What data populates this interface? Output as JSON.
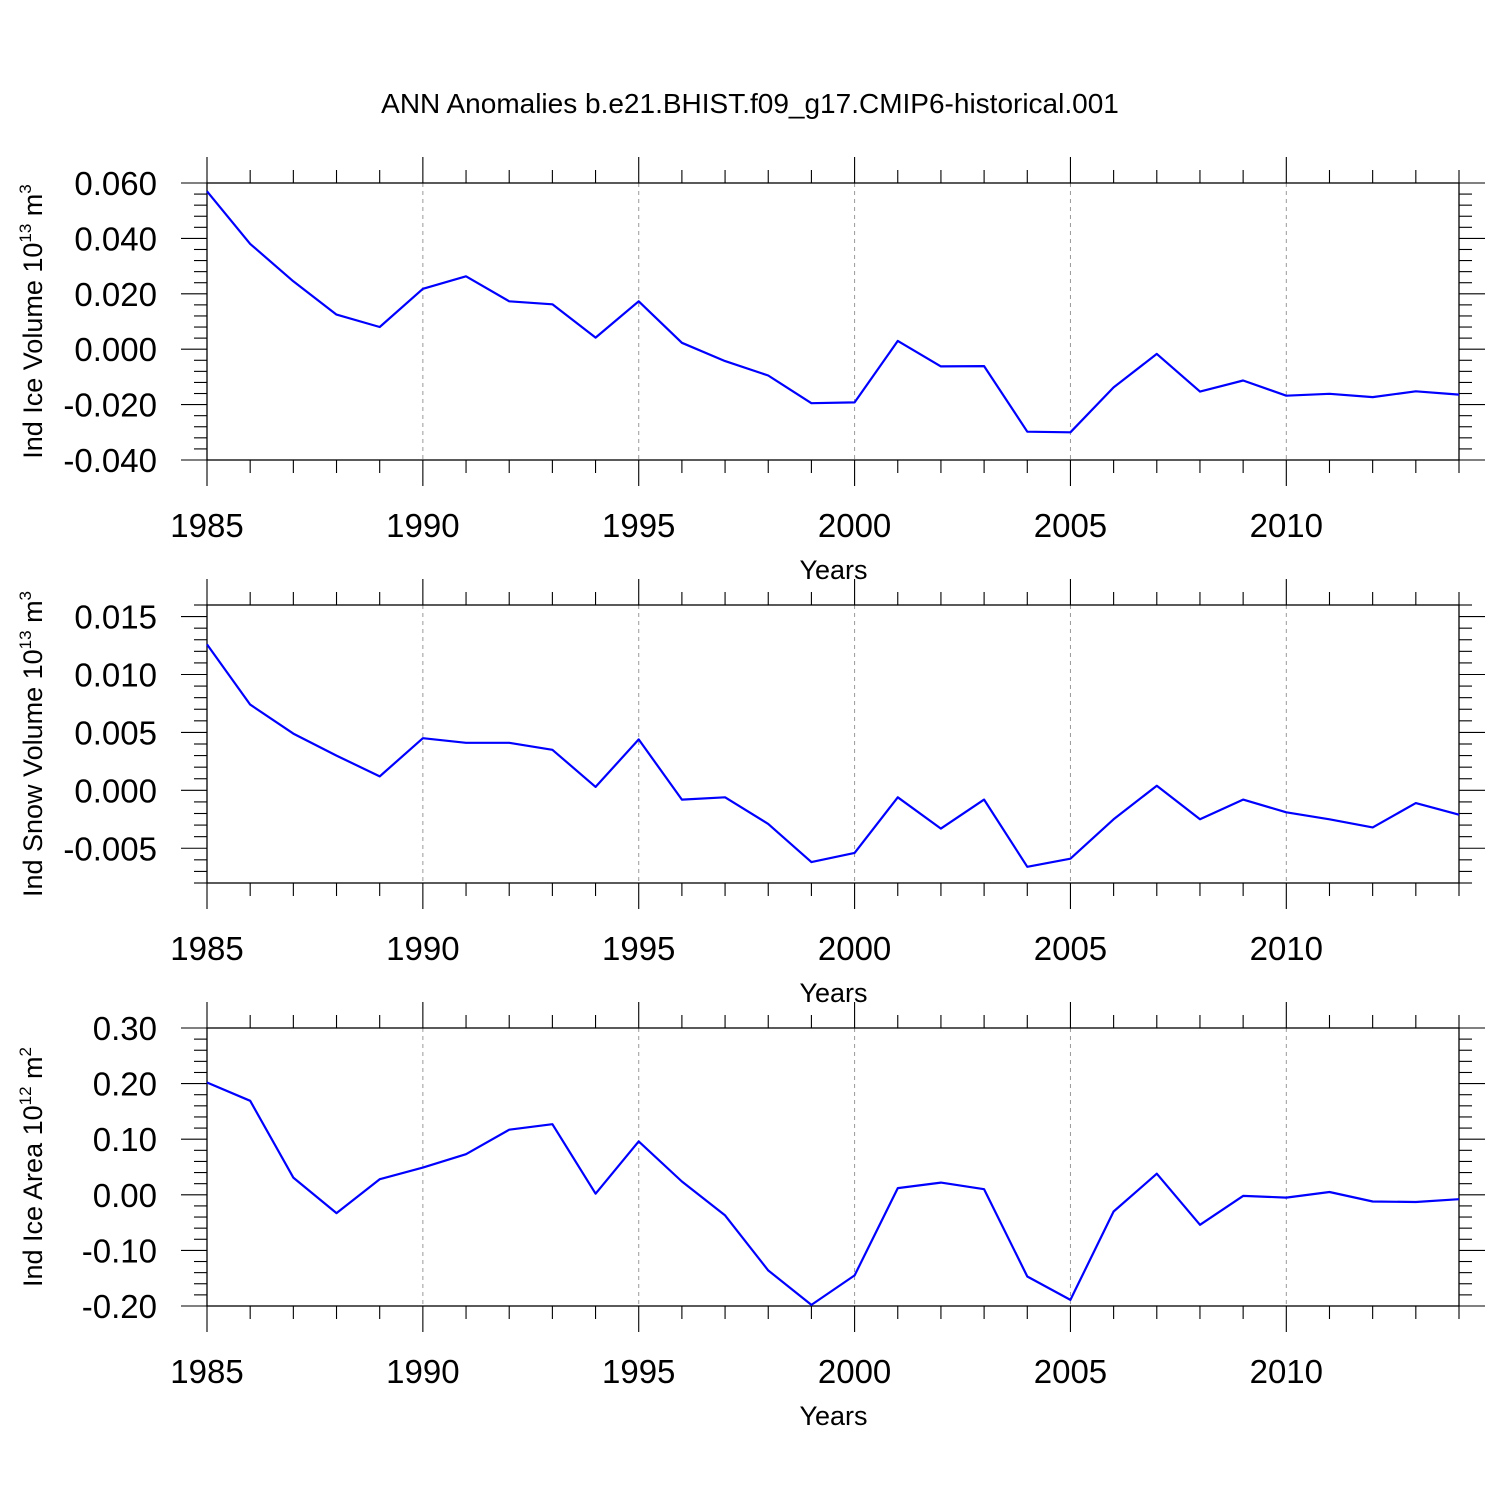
{
  "title": "ANN Anomalies b.e21.BHIST.f09_g17.CMIP6-historical.001",
  "colors": {
    "line": "#0000ff",
    "axis": "#000000",
    "grid": "#999999"
  },
  "chart_data": [
    {
      "type": "line",
      "xlabel": "Years",
      "ylabel": {
        "text": "Ind Ice Volume 10",
        "exp": "13",
        "unit": " m",
        "unit_exp": "3"
      },
      "xlim": [
        1985,
        2014
      ],
      "ylim": [
        -0.04,
        0.06
      ],
      "x_ticks": [
        "1985",
        "1990",
        "1995",
        "2000",
        "2005",
        "2010"
      ],
      "y_ticks": [
        "0.060",
        "0.040",
        "0.020",
        "0.000",
        "-0.020",
        "-0.040"
      ],
      "grid": "vertical dashed at major x ticks",
      "x": [
        1985,
        1986,
        1987,
        1988,
        1989,
        1990,
        1991,
        1992,
        1993,
        1994,
        1995,
        1996,
        1997,
        1998,
        1999,
        2000,
        2001,
        2002,
        2003,
        2004,
        2005,
        2006,
        2007,
        2008,
        2009,
        2010,
        2011,
        2012,
        2013,
        2014
      ],
      "values": [
        0.057,
        0.038,
        0.0245,
        0.0125,
        0.008,
        0.0218,
        0.0263,
        0.0173,
        0.0162,
        0.0042,
        0.0173,
        0.0023,
        -0.0043,
        -0.0095,
        -0.0195,
        -0.0192,
        0.003,
        -0.0062,
        -0.0061,
        -0.0298,
        -0.03,
        -0.0138,
        -0.0017,
        -0.0153,
        -0.0113,
        -0.0168,
        -0.0161,
        -0.0173,
        -0.0152,
        -0.0164
      ]
    },
    {
      "type": "line",
      "xlabel": "Years",
      "ylabel": {
        "text": "Ind Snow Volume 10",
        "exp": "13",
        "unit": " m",
        "unit_exp": "3"
      },
      "xlim": [
        1985,
        2014
      ],
      "ylim": [
        -0.008,
        0.016
      ],
      "x_ticks": [
        "1985",
        "1990",
        "1995",
        "2000",
        "2005",
        "2010"
      ],
      "y_ticks": [
        "0.015",
        "0.010",
        "0.005",
        "0.000",
        "-0.005"
      ],
      "y_tick_values": [
        0.015,
        0.01,
        0.005,
        0.0,
        -0.005
      ],
      "grid": "vertical dashed at major x ticks",
      "x": [
        1985,
        1986,
        1987,
        1988,
        1989,
        1990,
        1991,
        1992,
        1993,
        1994,
        1995,
        1996,
        1997,
        1998,
        1999,
        2000,
        2001,
        2002,
        2003,
        2004,
        2005,
        2006,
        2007,
        2008,
        2009,
        2010,
        2011,
        2012,
        2013,
        2014
      ],
      "values": [
        0.0126,
        0.0074,
        0.0049,
        0.003,
        0.0012,
        0.0045,
        0.0041,
        0.0041,
        0.0035,
        0.0003,
        0.0044,
        -0.0008,
        -0.0006,
        -0.0029,
        -0.0062,
        -0.0054,
        -0.0006,
        -0.0033,
        -0.0008,
        -0.0066,
        -0.0059,
        -0.0025,
        0.0004,
        -0.0025,
        -0.0008,
        -0.0019,
        -0.0025,
        -0.0032,
        -0.0011,
        -0.0021
      ]
    },
    {
      "type": "line",
      "xlabel": "Years",
      "ylabel": {
        "text": "Ind Ice Area 10",
        "exp": "12",
        "unit": " m",
        "unit_exp": "2"
      },
      "xlim": [
        1985,
        2014
      ],
      "ylim": [
        -0.2,
        0.3
      ],
      "x_ticks": [
        "1985",
        "1990",
        "1995",
        "2000",
        "2005",
        "2010"
      ],
      "y_ticks": [
        "0.30",
        "0.20",
        "0.10",
        "0.00",
        "-0.10",
        "-0.20"
      ],
      "grid": "vertical dashed at major x ticks",
      "x": [
        1985,
        1986,
        1987,
        1988,
        1989,
        1990,
        1991,
        1992,
        1993,
        1994,
        1995,
        1996,
        1997,
        1998,
        1999,
        2000,
        2001,
        2002,
        2003,
        2004,
        2005,
        2006,
        2007,
        2008,
        2009,
        2010,
        2011,
        2012,
        2013,
        2014
      ],
      "values": [
        0.202,
        0.169,
        0.031,
        -0.033,
        0.028,
        0.049,
        0.073,
        0.117,
        0.127,
        0.002,
        0.096,
        0.024,
        -0.037,
        -0.136,
        -0.198,
        -0.145,
        0.012,
        0.022,
        0.01,
        -0.147,
        -0.189,
        -0.03,
        0.038,
        -0.054,
        -0.002,
        -0.005,
        0.005,
        -0.012,
        -0.013,
        -0.008
      ]
    }
  ]
}
